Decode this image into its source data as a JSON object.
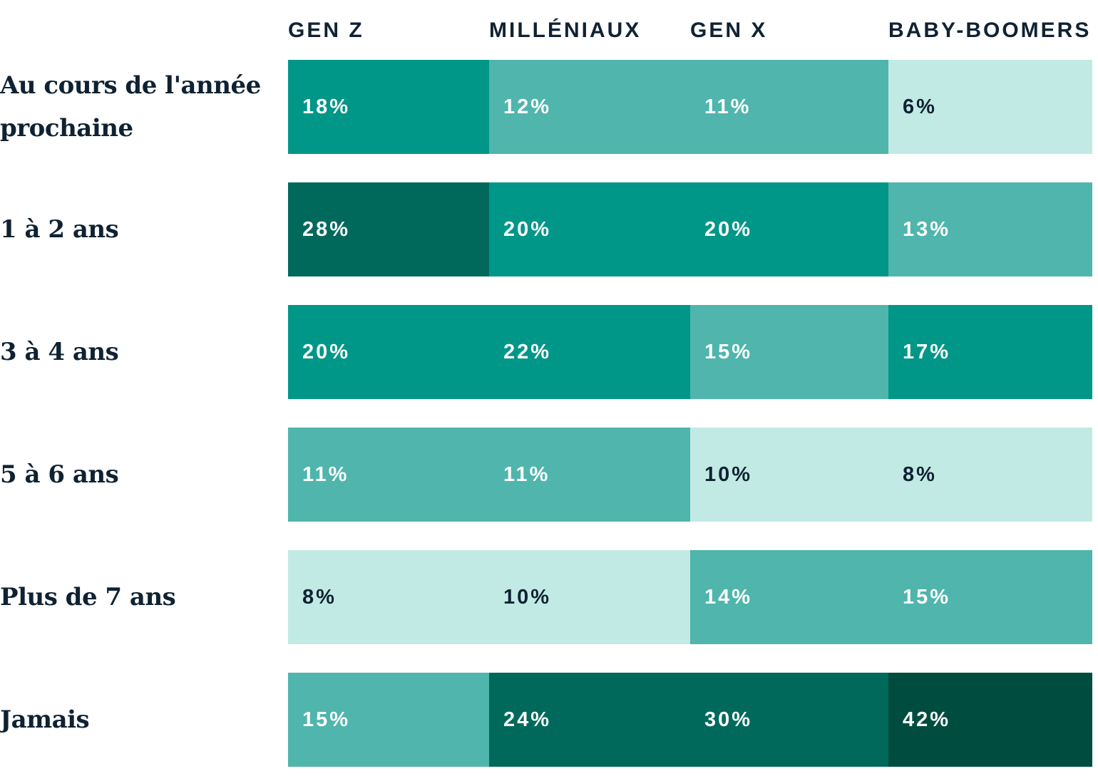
{
  "chart_data": {
    "type": "heatmap",
    "columns": [
      "GEN Z",
      "MILLÉNIAUX",
      "GEN X",
      "BABY-BOOMERS"
    ],
    "rows": [
      "Au cours de l'année prochaine",
      "1 à 2 ans",
      "3 à 4 ans",
      "5 à 6 ans",
      "Plus de 7 ans",
      "Jamais"
    ],
    "values": [
      [
        18,
        12,
        11,
        6
      ],
      [
        28,
        20,
        20,
        13
      ],
      [
        20,
        22,
        15,
        17
      ],
      [
        11,
        11,
        10,
        8
      ],
      [
        8,
        10,
        14,
        15
      ],
      [
        15,
        24,
        30,
        42
      ]
    ],
    "unit": "%",
    "color_scale": {
      "light": "#c2eae5",
      "medium": "#4fb5ad",
      "teal": "#009688",
      "dark": "#00695c",
      "darkest": "#004d40"
    },
    "text_dark": "#0f2233",
    "text_light": "#ffffff"
  }
}
